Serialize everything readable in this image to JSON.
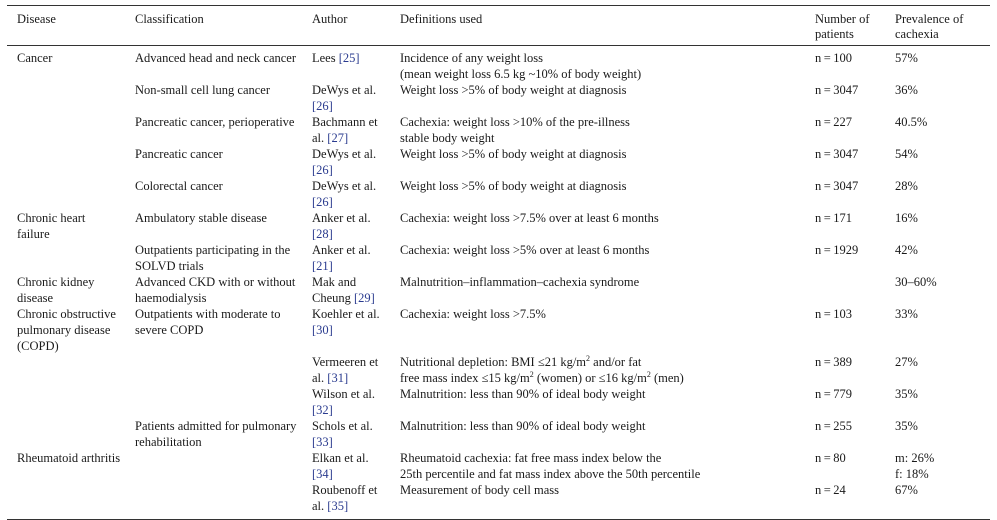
{
  "headers": [
    "Disease",
    "Classification",
    "Author",
    "Definitions used",
    "Number of patients",
    "Prevalence of cachexia"
  ],
  "rows": [
    {
      "disease": "Cancer",
      "classification": "Advanced head and neck cancer",
      "author": "Lees",
      "ref": "[25]",
      "definition": "Incidence of any weight loss",
      "definition2": "(mean weight loss 6.5 kg ~10% of body weight)",
      "n": "n = 100",
      "prevalence": "57%"
    },
    {
      "disease": "",
      "classification": "Non-small cell lung cancer",
      "author": "DeWys et al.",
      "ref": "[26]",
      "definition": "Weight loss >5% of body weight at diagnosis",
      "definition2": "",
      "n": "n = 3047",
      "prevalence": "36%"
    },
    {
      "disease": "",
      "classification": "Pancreatic cancer, perioperative",
      "author": "Bachmann et al.",
      "ref": "[27]",
      "definition": "Cachexia: weight loss >10% of the pre-illness",
      "definition2": "stable body weight",
      "n": "n = 227",
      "prevalence": "40.5%"
    },
    {
      "disease": "",
      "classification": "Pancreatic cancer",
      "author": "DeWys et al.",
      "ref": "[26]",
      "definition": "Weight loss >5% of body weight at diagnosis",
      "definition2": "",
      "n": "n = 3047",
      "prevalence": "54%"
    },
    {
      "disease": "",
      "classification": "Colorectal cancer",
      "author": "DeWys et al.",
      "ref": "[26]",
      "definition": "Weight loss >5% of body weight at diagnosis",
      "definition2": "",
      "n": "n = 3047",
      "prevalence": "28%"
    },
    {
      "disease": "Chronic heart failure",
      "classification": "Ambulatory stable disease",
      "author": "Anker et al.",
      "ref": "[28]",
      "definition": "Cachexia: weight loss >7.5% over at least 6 months",
      "definition2": "",
      "n": "n = 171",
      "prevalence": "16%"
    },
    {
      "disease": "",
      "classification": "Outpatients participating in the SOLVD trials",
      "author": "Anker et al.",
      "ref": "[21]",
      "definition": "Cachexia: weight loss >5% over at least 6 months",
      "definition2": "",
      "n": "n = 1929",
      "prevalence": "42%"
    },
    {
      "disease": "Chronic kidney disease",
      "classification": "Advanced CKD with or without haemodialysis",
      "author": "Mak and Cheung",
      "ref": "[29]",
      "definition": "Malnutrition–inflammation–cachexia syndrome",
      "definition2": "",
      "n": "",
      "prevalence": "30–60%"
    },
    {
      "disease": "Chronic obstructive pulmonary disease (COPD)",
      "classification": "Outpatients with moderate to severe COPD",
      "author": "Koehler et al.",
      "ref": "[30]",
      "definition": "Cachexia: weight loss >7.5%",
      "definition2": "",
      "n": "n = 103",
      "prevalence": "33%"
    },
    {
      "disease": "",
      "classification": "",
      "author": "Vermeeren et al.",
      "ref": "[31]",
      "definition": "Nutritional depletion: BMI ≤21 kg/m",
      "definition_sup": "2",
      "definition_tail": " and/or fat",
      "definition2": "free mass index ≤15 kg/m",
      "definition2_sup": "2",
      "definition2_tail": " (women) or ≤16 kg/m",
      "definition2_sup2": "2",
      "definition2_tail2": " (men)",
      "n": "n = 389",
      "prevalence": "27%"
    },
    {
      "disease": "",
      "classification": "",
      "author": "Wilson et al.",
      "ref": "[32]",
      "definition": "Malnutrition: less than 90% of ideal body weight",
      "definition2": "",
      "n": "n = 779",
      "prevalence": "35%"
    },
    {
      "disease": "",
      "classification": "Patients admitted for pulmonary rehabilitation",
      "author": "Schols et al.",
      "ref": "[33]",
      "definition": "Malnutrition: less than 90% of ideal body weight",
      "definition2": "",
      "n": "n = 255",
      "prevalence": "35%"
    },
    {
      "disease": "Rheumatoid arthritis",
      "classification": "",
      "author": "Elkan et al.",
      "ref": "[34]",
      "definition": "Rheumatoid cachexia: fat free mass index below the",
      "definition2": "25th percentile and fat mass index above the 50th percentile",
      "n": "n = 80",
      "prevalence": "m: 26%",
      "prevalence2": "f: 18%"
    },
    {
      "disease": "",
      "classification": "",
      "author": "Roubenoff et al.",
      "ref": "[35]",
      "definition": "Measurement of body cell mass",
      "definition2": "",
      "n": "n = 24",
      "prevalence": "67%"
    }
  ]
}
